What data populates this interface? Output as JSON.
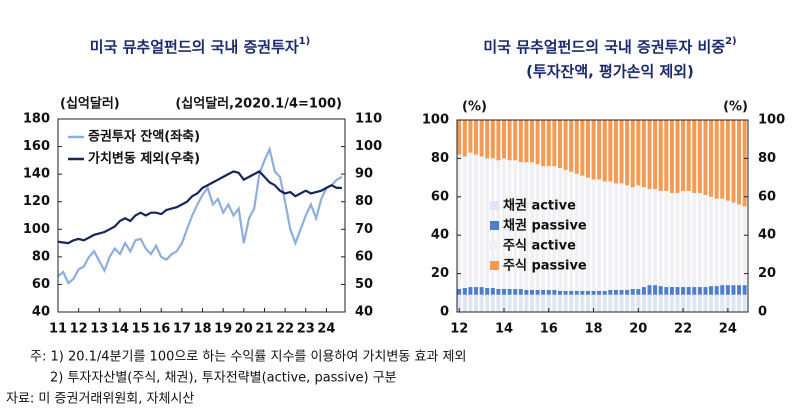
{
  "chart_data": [
    {
      "type": "line",
      "title": "미국 뮤추얼펀드의 국내 증권투자",
      "title_note": "1)",
      "y_label": "(십억달러)",
      "y2_label": "(십억달러,2020.1/4=100)",
      "x": [
        2011,
        2011.25,
        2011.5,
        2011.75,
        2012,
        2012.25,
        2012.5,
        2012.75,
        2013,
        2013.25,
        2013.5,
        2013.75,
        2014,
        2014.25,
        2014.5,
        2014.75,
        2015,
        2015.25,
        2015.5,
        2015.75,
        2016,
        2016.25,
        2016.5,
        2016.75,
        2017,
        2017.25,
        2017.5,
        2017.75,
        2018,
        2018.25,
        2018.5,
        2018.75,
        2019,
        2019.25,
        2019.5,
        2019.75,
        2020,
        2020.25,
        2020.5,
        2020.75,
        2021,
        2021.25,
        2021.5,
        2021.75,
        2022,
        2022.25,
        2022.5,
        2022.75,
        2023,
        2023.25,
        2023.5,
        2023.75,
        2024,
        2024.25,
        2024.5,
        2024.75
      ],
      "xlim": [
        2011,
        2024.9
      ],
      "xticks": [
        {
          "value": 2011,
          "label": "11"
        },
        {
          "value": 2012,
          "label": "12"
        },
        {
          "value": 2013,
          "label": "13"
        },
        {
          "value": 2014,
          "label": "14"
        },
        {
          "value": 2015,
          "label": "15"
        },
        {
          "value": 2016,
          "label": "16"
        },
        {
          "value": 2017,
          "label": "17"
        },
        {
          "value": 2018,
          "label": "18"
        },
        {
          "value": 2019,
          "label": "19"
        },
        {
          "value": 2020,
          "label": "20"
        },
        {
          "value": 2021,
          "label": "21"
        },
        {
          "value": 2022,
          "label": "22"
        },
        {
          "value": 2023,
          "label": "23"
        },
        {
          "value": 2024,
          "label": "24"
        }
      ],
      "ylim": [
        40,
        180
      ],
      "yticks": [
        40,
        60,
        80,
        100,
        120,
        140,
        160,
        180
      ],
      "y2lim": [
        40,
        110
      ],
      "y2ticks": [
        40,
        50,
        60,
        70,
        80,
        90,
        100,
        110
      ],
      "legend": "upper left",
      "series": [
        {
          "name": "증권투자 잔액(좌축)",
          "color": "#8eaedb",
          "axis": "y",
          "values": [
            66,
            69,
            61,
            64,
            71,
            73,
            80,
            84,
            77,
            70,
            80,
            86,
            82,
            90,
            84,
            92,
            93,
            86,
            82,
            88,
            80,
            78,
            82,
            84,
            90,
            100,
            110,
            118,
            125,
            130,
            118,
            122,
            112,
            118,
            110,
            115,
            90,
            108,
            115,
            140,
            150,
            158,
            142,
            138,
            120,
            100,
            90,
            100,
            110,
            118,
            108,
            122,
            130,
            132,
            136,
            138
          ]
        },
        {
          "name": "가치변동 제외(우축)",
          "color": "#16265a",
          "axis": "y2",
          "values": [
            65.5,
            65.2,
            65,
            66,
            66.5,
            66,
            67,
            68,
            68.5,
            69,
            70,
            71,
            73,
            74,
            73,
            75,
            76,
            75,
            76,
            76,
            75.5,
            77,
            77.5,
            78,
            79,
            80,
            82,
            83,
            85,
            86,
            87,
            88,
            89,
            90,
            91,
            90.5,
            88,
            89,
            90,
            91,
            89,
            87,
            86,
            84,
            83,
            83.5,
            82,
            83,
            84,
            83,
            83.5,
            84,
            85,
            86,
            85,
            85
          ]
        }
      ]
    },
    {
      "type": "bar",
      "stacked": true,
      "title": "미국 뮤추얼펀드의 국내 증권투자 비중",
      "title_note": "2)",
      "subtitle": "(투자잔액, 평가손익 제외)",
      "y_label": "(%)",
      "y2_label": "(%)",
      "x": [
        2012,
        2012.25,
        2012.5,
        2012.75,
        2013,
        2013.25,
        2013.5,
        2013.75,
        2014,
        2014.25,
        2014.5,
        2014.75,
        2015,
        2015.25,
        2015.5,
        2015.75,
        2016,
        2016.25,
        2016.5,
        2016.75,
        2017,
        2017.25,
        2017.5,
        2017.75,
        2018,
        2018.25,
        2018.5,
        2018.75,
        2019,
        2019.25,
        2019.5,
        2019.75,
        2020,
        2020.25,
        2020.5,
        2020.75,
        2021,
        2021.25,
        2021.5,
        2021.75,
        2022,
        2022.25,
        2022.5,
        2022.75,
        2023,
        2023.25,
        2023.5,
        2023.75,
        2024,
        2024.25,
        2024.5,
        2024.75
      ],
      "xlim": [
        2011.9,
        2024.9
      ],
      "xticks": [
        {
          "value": 2012,
          "label": "12"
        },
        {
          "value": 2014,
          "label": "14"
        },
        {
          "value": 2016,
          "label": "16"
        },
        {
          "value": 2018,
          "label": "18"
        },
        {
          "value": 2020,
          "label": "20"
        },
        {
          "value": 2022,
          "label": "22"
        },
        {
          "value": 2024,
          "label": "24"
        }
      ],
      "ylim": [
        0,
        100
      ],
      "yticks": [
        0,
        20,
        40,
        60,
        80,
        100
      ],
      "y2lim": [
        0,
        100
      ],
      "y2ticks": [
        0,
        20,
        40,
        60,
        80,
        100
      ],
      "legend": "center left",
      "series": [
        {
          "name": "채권 active",
          "color": "#dfe6f1",
          "values": [
            9,
            9,
            9,
            9,
            9,
            9,
            9,
            9,
            9,
            9,
            9,
            9,
            9,
            9,
            9,
            9,
            9,
            9,
            9,
            9,
            9,
            9,
            9,
            9,
            9,
            9,
            9,
            9,
            9,
            9,
            9,
            9,
            9,
            9,
            9,
            9,
            9,
            9,
            9,
            9,
            9,
            9,
            9,
            9,
            9,
            9,
            9,
            9,
            9,
            9,
            9,
            9
          ]
        },
        {
          "name": "채권 passive",
          "color": "#4f7ec8",
          "values": [
            3,
            3.5,
            4,
            4,
            4,
            3.5,
            3.5,
            3,
            3,
            3,
            3,
            3,
            2.5,
            2.5,
            2.5,
            2.5,
            2.5,
            2.5,
            2,
            2,
            2,
            2,
            2,
            2,
            2,
            2,
            2,
            2.5,
            2.5,
            2.5,
            2.5,
            3,
            3,
            4,
            5,
            5,
            4.5,
            4,
            4,
            4,
            4,
            4,
            4,
            4,
            4,
            4.5,
            4.5,
            5,
            5,
            5,
            5,
            5
          ]
        },
        {
          "name": "주식 active",
          "color": "#f1f1f3",
          "values": [
            70,
            68.5,
            70,
            69,
            68,
            67.5,
            67.5,
            67,
            68,
            67,
            67,
            66,
            66.5,
            66.5,
            65.5,
            64.5,
            64.5,
            64.5,
            64,
            63,
            62,
            61,
            60,
            59,
            58,
            58,
            57,
            56.5,
            55.5,
            55.5,
            54.5,
            53,
            54,
            52,
            50,
            50,
            49.5,
            50,
            49,
            49,
            50,
            50,
            49,
            49,
            48,
            46.5,
            45.5,
            45,
            44,
            43,
            42,
            41
          ]
        },
        {
          "name": "주식 passive",
          "color": "#f39a55",
          "values": [
            18,
            19,
            17,
            18,
            19,
            20,
            20,
            21,
            20,
            21,
            21,
            22,
            22,
            22,
            23,
            24,
            24,
            24,
            25,
            26,
            27,
            28,
            29,
            30,
            31,
            31,
            32,
            32,
            33,
            33,
            34,
            35,
            34,
            35,
            36,
            36,
            37,
            37,
            38,
            38,
            37,
            37,
            38,
            38,
            39,
            40,
            41,
            41,
            42,
            43,
            44,
            45
          ]
        }
      ]
    }
  ],
  "notes": [
    "주: 1) 20.1/4분기를 100으로 하는 수익률 지수를 이용하여 가치변동 효과 제외",
    "2) 투자자산별(주식, 채권), 투자전략별(active, passive) 구분",
    "자료: 미 증권거래위원회, 자체시산"
  ]
}
